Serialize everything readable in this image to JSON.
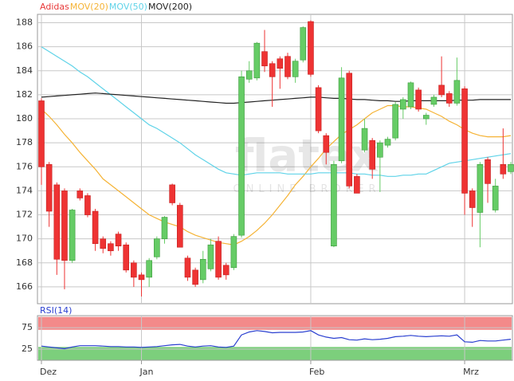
{
  "chart_data": [
    {
      "type": "candlestick",
      "name": "Adidas",
      "color": "#e83838",
      "color_up": "#66cc66",
      "color_down": "#ee3333",
      "watermark": "flatex",
      "watermark_subtitle": "ONLINE BROKER",
      "categories": [
        "Dez",
        null,
        null,
        null,
        null,
        null,
        null,
        null,
        null,
        null,
        null,
        null,
        null,
        "Jan",
        null,
        null,
        null,
        null,
        null,
        null,
        null,
        null,
        null,
        null,
        null,
        null,
        null,
        null,
        null,
        null,
        null,
        null,
        null,
        null,
        null,
        "Feb",
        null,
        null,
        null,
        null,
        null,
        null,
        null,
        null,
        null,
        null,
        null,
        null,
        null,
        null,
        null,
        null,
        null,
        null,
        null,
        "Mrz",
        null,
        null,
        null,
        null,
        null,
        null
      ],
      "open": [
        181.5,
        176.2,
        174.5,
        174,
        168.2,
        174,
        173.6,
        172.3,
        170,
        169.6,
        170.4,
        169.5,
        168,
        167,
        166.8,
        168.5,
        170,
        174.5,
        172.8,
        168.4,
        167.4,
        166.6,
        167.5,
        169.8,
        167.8,
        167.6,
        170.3,
        183.3,
        183.4,
        185.6,
        184.6,
        185,
        185.2,
        183.5,
        184.9,
        188.1,
        182.6,
        178.6,
        169.4,
        176.5,
        183.8,
        175.2,
        177.4,
        178.2,
        176.8,
        177.8,
        178.4,
        180.8,
        181,
        182.4,
        180,
        181.2,
        182.8,
        182.1,
        181.3,
        182.5,
        174,
        172.2,
        176.6,
        172.4,
        176.2,
        175.6
      ],
      "high": [
        181.7,
        176.4,
        174.7,
        174.2,
        172.5,
        174.2,
        173.8,
        172.5,
        170.2,
        169.8,
        170.6,
        169.7,
        168.2,
        167.2,
        168.4,
        170.2,
        171.9,
        174.6,
        173,
        168.6,
        167.6,
        169,
        170,
        170.2,
        168,
        170.4,
        184,
        184.8,
        186.4,
        187.4,
        184.8,
        185.2,
        185.5,
        185,
        187.7,
        188.2,
        182.8,
        178.8,
        176.5,
        184.3,
        184,
        175.4,
        180,
        178.4,
        178.2,
        178.5,
        181.4,
        181.8,
        183.1,
        182.6,
        180.5,
        182,
        185.2,
        182.3,
        185.1,
        182.7,
        174.2,
        176.4,
        176.8,
        175,
        179.2,
        176.4
      ],
      "low": [
        174.5,
        171,
        167,
        165.8,
        168,
        173.2,
        171.8,
        169,
        168.8,
        168.6,
        169,
        167.2,
        166,
        165.2,
        166,
        168.3,
        169.6,
        172.8,
        169.3,
        166.5,
        166,
        166.3,
        167.3,
        166.6,
        166.6,
        167.4,
        170.1,
        183,
        183.2,
        183.9,
        181,
        182.5,
        183.3,
        183,
        184.7,
        183.5,
        178.8,
        176.2,
        169.3,
        176.3,
        174.2,
        174,
        177.2,
        175,
        173.9,
        177.6,
        178.2,
        180,
        180.8,
        180.6,
        179.5,
        181,
        181.8,
        181,
        181.1,
        172,
        171,
        169.3,
        173,
        172.2,
        175,
        175.4
      ],
      "close": [
        176,
        172.3,
        168.3,
        168.2,
        172.4,
        173.4,
        172,
        169.6,
        169.2,
        169,
        169.4,
        167.4,
        166.8,
        166.6,
        168.2,
        170,
        171.8,
        173,
        169.3,
        166.8,
        166.2,
        168.3,
        169.5,
        166.8,
        167,
        170.2,
        183.5,
        184,
        186.3,
        184.4,
        183.5,
        184.2,
        183.5,
        184.8,
        187.6,
        183.7,
        179,
        177.2,
        176.2,
        183.4,
        174.4,
        173.8,
        179.2,
        175.8,
        178,
        178.3,
        181.2,
        181.6,
        183,
        180.8,
        180.3,
        181.8,
        182,
        181.3,
        183.2,
        173.8,
        172.6,
        176.2,
        174.6,
        174.4,
        175.4,
        176.2
      ],
      "series": [
        {
          "name": "MOV(20)",
          "color": "#f5b335",
          "values": [
            180.8,
            180.2,
            179.5,
            178.7,
            178,
            177.2,
            176.5,
            175.8,
            175,
            174.5,
            174,
            173.5,
            173,
            172.5,
            172,
            171.7,
            171.4,
            171.2,
            171,
            170.6,
            170.3,
            170.1,
            169.9,
            169.7,
            169.6,
            169.5,
            169.8,
            170.2,
            170.7,
            171.3,
            172,
            172.8,
            173.6,
            174.5,
            175.2,
            176,
            176.7,
            177.5,
            178.1,
            178.7,
            179.1,
            179.5,
            180,
            180.5,
            180.8,
            181.1,
            181.1,
            181,
            181,
            180.9,
            180.8,
            180.5,
            180.2,
            179.8,
            179.5,
            179.1,
            178.8,
            178.6,
            178.5,
            178.5,
            178.5,
            178.6
          ]
        },
        {
          "name": "MOV(50)",
          "color": "#5fd3e8",
          "values": [
            186,
            185.6,
            185.2,
            184.8,
            184.4,
            183.9,
            183.5,
            183,
            182.5,
            182,
            181.5,
            181,
            180.5,
            180,
            179.5,
            179.2,
            178.8,
            178.4,
            178,
            177.5,
            177,
            176.6,
            176.2,
            175.8,
            175.5,
            175.4,
            175.3,
            175.4,
            175.5,
            175.5,
            175.5,
            175.5,
            175.4,
            175.4,
            175.4,
            175.4,
            175.5,
            175.5,
            175.5,
            175.5,
            175.5,
            175.4,
            175.4,
            175.3,
            175.3,
            175.2,
            175.2,
            175.3,
            175.3,
            175.4,
            175.4,
            175.7,
            176,
            176.3,
            176.4,
            176.5,
            176.6,
            176.7,
            176.8,
            176.9,
            177,
            177.1
          ]
        },
        {
          "name": "MOV(200)",
          "color": "#222222",
          "values": [
            181.8,
            181.85,
            181.9,
            181.95,
            182,
            182.05,
            182.1,
            182.15,
            182.1,
            182.05,
            182,
            181.95,
            181.9,
            181.85,
            181.8,
            181.75,
            181.7,
            181.65,
            181.6,
            181.55,
            181.5,
            181.45,
            181.4,
            181.35,
            181.3,
            181.3,
            181.35,
            181.4,
            181.45,
            181.5,
            181.55,
            181.6,
            181.65,
            181.7,
            181.75,
            181.8,
            181.8,
            181.75,
            181.7,
            181.7,
            181.65,
            181.6,
            181.6,
            181.55,
            181.5,
            181.5,
            181.45,
            181.45,
            181.5,
            181.5,
            181.5,
            181.5,
            181.5,
            181.5,
            181.55,
            181.55,
            181.55,
            181.6,
            181.6,
            181.6,
            181.6,
            181.6
          ]
        }
      ],
      "ylim": [
        164.6,
        188.7
      ],
      "yticks": [
        166,
        168,
        170,
        172,
        174,
        176,
        178,
        180,
        182,
        184,
        186,
        188
      ],
      "grid": true
    },
    {
      "type": "line",
      "series": [
        {
          "name": "RSI(14)",
          "color": "#2a3fd0",
          "values": [
            32,
            30,
            28,
            26,
            30,
            33,
            33,
            33,
            32,
            31,
            31,
            30,
            30,
            29,
            30,
            31,
            33,
            35,
            36,
            32,
            30,
            32,
            33,
            30,
            29,
            32,
            58,
            65,
            68,
            66,
            63,
            64,
            64,
            64,
            65,
            68,
            58,
            53,
            50,
            52,
            47,
            46,
            49,
            47,
            48,
            50,
            54,
            55,
            57,
            55,
            54,
            55,
            56,
            55,
            58,
            42,
            41,
            45,
            44,
            44,
            46,
            48
          ]
        }
      ],
      "bands": [
        {
          "range": [
            70,
            100
          ],
          "color": "#f38a8a"
        },
        {
          "range": [
            0,
            30
          ],
          "color": "#7ccf7c"
        }
      ],
      "ylim": [
        -1,
        103
      ],
      "yticks": [
        25,
        75
      ],
      "grid": true
    }
  ]
}
